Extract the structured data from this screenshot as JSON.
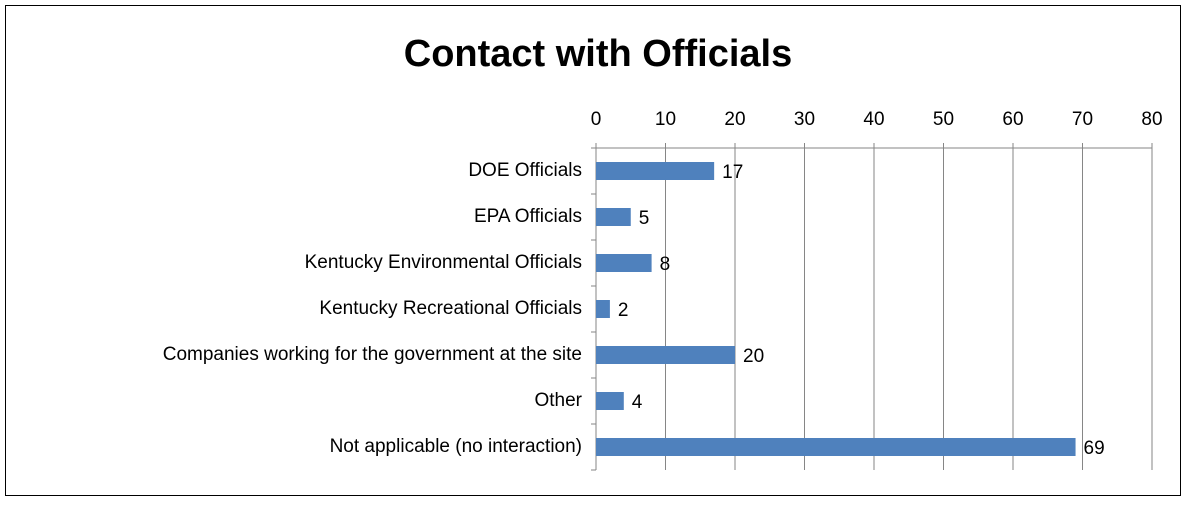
{
  "chart_data": {
    "type": "bar",
    "orientation": "horizontal",
    "title": "Contact with Officials",
    "categories": [
      "DOE Officials",
      "EPA Officials",
      "Kentucky Environmental Officials",
      "Kentucky Recreational Officials",
      "Companies working for the government at the site",
      "Other",
      "Not applicable (no interaction)"
    ],
    "values": [
      17,
      5,
      8,
      2,
      20,
      4,
      69
    ],
    "color": "#4f81bd",
    "xlim": [
      0,
      80
    ],
    "xticks": [
      0,
      10,
      20,
      30,
      40,
      50,
      60,
      70,
      80
    ],
    "grid": true,
    "data_labels": true
  }
}
